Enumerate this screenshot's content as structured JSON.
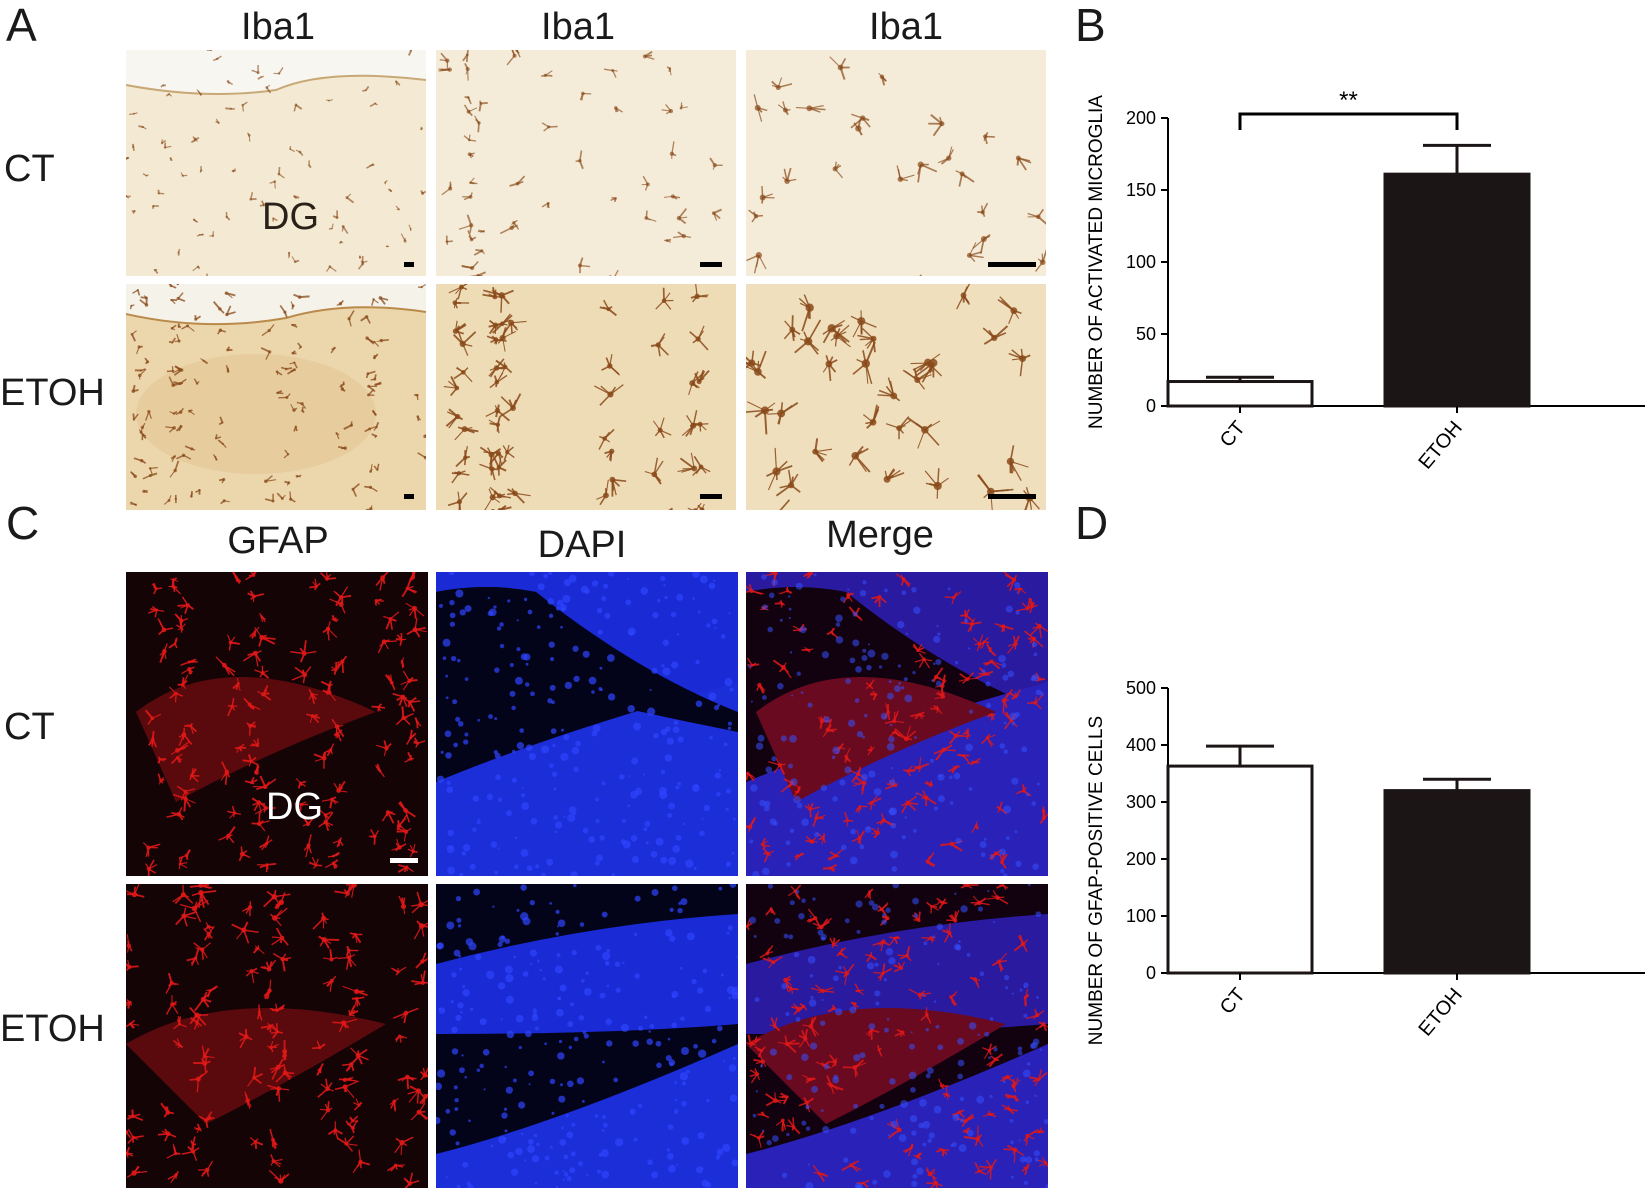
{
  "panel_letters": [
    "A",
    "B",
    "C",
    "D"
  ],
  "panel_a": {
    "col_labels": [
      "Iba1",
      "Iba1",
      "Iba1"
    ],
    "row_labels": [
      "CT",
      "ETOH"
    ],
    "region_label": "DG",
    "colors": {
      "background_ct": "#f5ecd8",
      "background_etoh": "#ecd6ac",
      "stain": "#8a4a1a"
    }
  },
  "panel_c": {
    "col_labels": [
      "GFAP",
      "DAPI",
      "Merge"
    ],
    "row_labels": [
      "CT",
      "ETOH"
    ],
    "region_label": "DG",
    "colors": {
      "gfap": "#e01818",
      "dapi": "#1a2ee0",
      "background": "#0a0204"
    }
  },
  "chart_data": [
    {
      "type": "bar",
      "panel": "B",
      "categories": [
        "CT",
        "ETOH"
      ],
      "values": [
        17,
        161
      ],
      "errors": [
        3,
        20
      ],
      "ylabel": "NUMBER OF ACTIVATED MICROGLIA",
      "xlabel": "",
      "ylim": [
        0,
        200
      ],
      "yticks": [
        0,
        50,
        100,
        150,
        200
      ],
      "significance": "**",
      "bar_colors": [
        "#ffffff",
        "#1c1515"
      ],
      "grid": false
    },
    {
      "type": "bar",
      "panel": "D",
      "categories": [
        "CT",
        "ETOH"
      ],
      "values": [
        363,
        320
      ],
      "errors": [
        35,
        20
      ],
      "ylabel": "NUMBER OF GFAP-POSITIVE CELLS",
      "xlabel": "",
      "ylim": [
        0,
        500
      ],
      "yticks": [
        0,
        100,
        200,
        300,
        400,
        500
      ],
      "bar_colors": [
        "#ffffff",
        "#1c1515"
      ],
      "grid": false
    }
  ]
}
